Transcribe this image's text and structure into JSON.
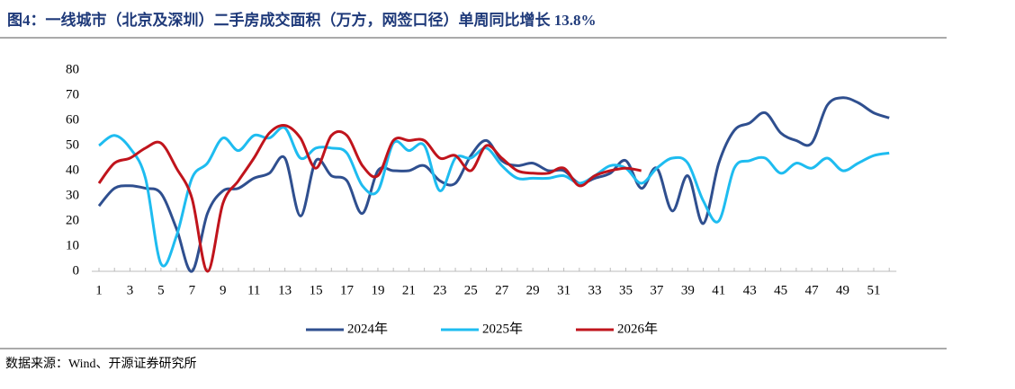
{
  "chart_data": {
    "type": "line",
    "title": "图4：一线城市（北京及深圳）二手房成交面积（万方，网签口径）单周同比增长 13.8%",
    "source": "数据来源：Wind、开源证券研究所",
    "categories": [
      1,
      null,
      3,
      null,
      5,
      null,
      7,
      null,
      9,
      null,
      11,
      null,
      13,
      null,
      15,
      null,
      17,
      null,
      19,
      null,
      21,
      null,
      23,
      null,
      25,
      null,
      27,
      null,
      29,
      null,
      31,
      null,
      33,
      null,
      35,
      null,
      37,
      null,
      39,
      null,
      41,
      null,
      43,
      null,
      45,
      null,
      47,
      null,
      49,
      null,
      51,
      null
    ],
    "series": [
      {
        "name": "2024年",
        "color": "#2f4f8f",
        "values": [
          26,
          33,
          34,
          33,
          31,
          17,
          0,
          23,
          32,
          33,
          37,
          39,
          45,
          22,
          44,
          38,
          36,
          23,
          40,
          40,
          40,
          42,
          36,
          35,
          46,
          52,
          44,
          42,
          43,
          40,
          40,
          35,
          37,
          39,
          44,
          33,
          41,
          24,
          38,
          19,
          43,
          56,
          59,
          63,
          55,
          52,
          51,
          66,
          69,
          67,
          63,
          61
        ]
      },
      {
        "name": "2025年",
        "color": "#1ebcf0",
        "values": [
          50,
          54,
          49,
          37,
          3,
          14,
          37,
          43,
          53,
          48,
          54,
          53,
          57,
          45,
          49,
          49,
          47,
          34,
          32,
          51,
          48,
          50,
          32,
          45,
          45,
          49,
          42,
          37,
          37,
          37,
          38,
          35,
          38,
          42,
          41,
          35,
          41,
          45,
          43,
          28,
          20,
          41,
          44,
          45,
          39,
          43,
          41,
          45,
          40,
          43,
          46,
          47
        ]
      },
      {
        "name": "2026年",
        "color": "#c0141c",
        "values": [
          35,
          43,
          45,
          49,
          51,
          41,
          29,
          0,
          27,
          36,
          45,
          55,
          58,
          53,
          41,
          54,
          54,
          42,
          38,
          52,
          52,
          52,
          45,
          46,
          40,
          50,
          45,
          40,
          39,
          39,
          41,
          34,
          38,
          40,
          41,
          40,
          null,
          null,
          null,
          null,
          null,
          null,
          null,
          null,
          null,
          null,
          null,
          null,
          null,
          null,
          null,
          null
        ]
      }
    ],
    "ylim": [
      0,
      80
    ],
    "yticks": [
      0,
      10,
      20,
      30,
      40,
      50,
      60,
      70,
      80
    ]
  }
}
